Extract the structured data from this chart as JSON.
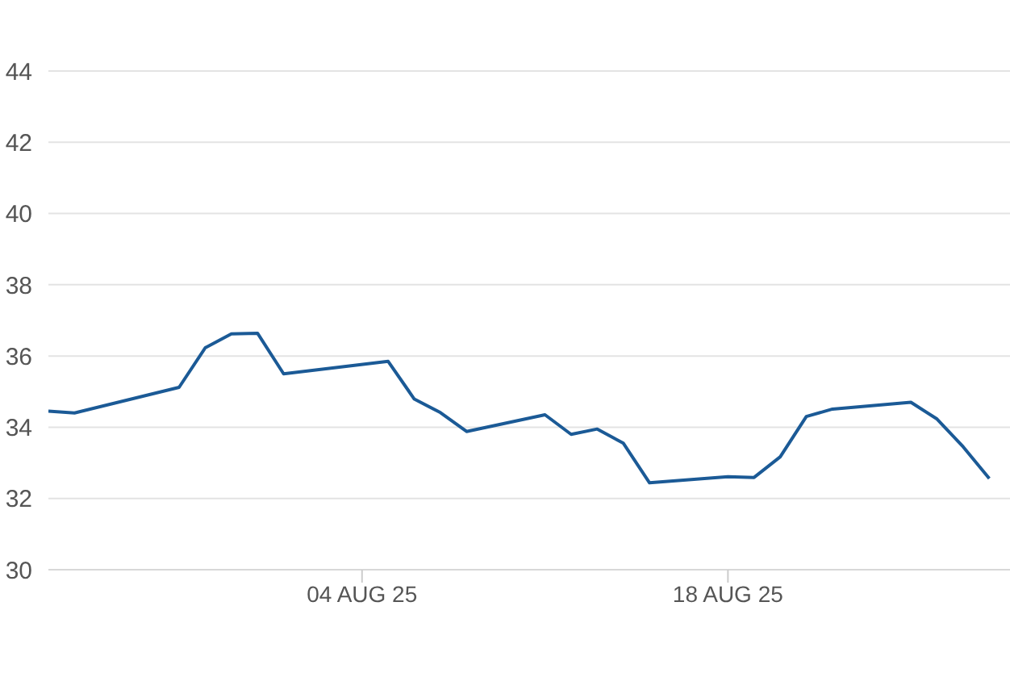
{
  "chart_data": {
    "type": "line",
    "x": [
      "--07-23",
      "--07-24",
      "--07-28",
      "--07-29",
      "--07-30",
      "--07-31",
      "--08-01",
      "--08-05",
      "--08-06",
      "--08-07",
      "--08-08",
      "--08-11",
      "--08-12",
      "--08-13",
      "--08-14",
      "--08-15",
      "--08-18",
      "--08-19",
      "--08-20",
      "--08-21",
      "--08-22",
      "--08-25",
      "--08-26",
      "--08-27",
      "--08-28"
    ],
    "series": [
      {
        "color": "#1b5a96",
        "values": [
          34.45,
          34.4,
          35.12,
          36.23,
          36.62,
          36.64,
          35.5,
          35.85,
          34.79,
          34.41,
          33.88,
          34.35,
          33.8,
          33.95,
          33.55,
          32.44,
          32.61,
          32.59,
          33.17,
          34.3,
          34.51,
          34.7,
          34.23,
          33.45,
          32.56
        ]
      }
    ],
    "xlim": [
      "--07-23",
      "--08-28T19:00"
    ],
    "xticks": [
      {
        "value": "--08-04",
        "label": "04 AUG 25"
      },
      {
        "value": "--08-18",
        "label": "18 AUG 25"
      }
    ],
    "ylim": [
      30,
      44
    ],
    "yticks": [
      30,
      32,
      34,
      36,
      38,
      40,
      42,
      44
    ],
    "grid": "y",
    "marker": "none",
    "line_style": "solid",
    "legend": false
  }
}
